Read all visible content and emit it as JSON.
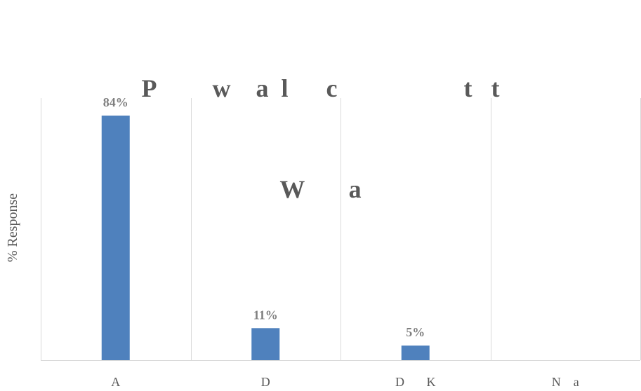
{
  "chart_data": {
    "type": "bar",
    "title_lines": [
      "P         w    a  l      c                    t   t",
      "W       a"
    ],
    "xlabel": "",
    "ylabel": "% Response",
    "categories": [
      "A",
      "D",
      "D       K",
      "N    a"
    ],
    "values": [
      84,
      11,
      5,
      0
    ],
    "data_labels": [
      "84%",
      "11%",
      "5%",
      ""
    ],
    "ylim": [
      0,
      90
    ],
    "grid": "vertical-category-separators",
    "legend": "none",
    "bar_color": "#4f81bd",
    "axis_color": "#d9d9d9",
    "text_color": "#595959"
  }
}
